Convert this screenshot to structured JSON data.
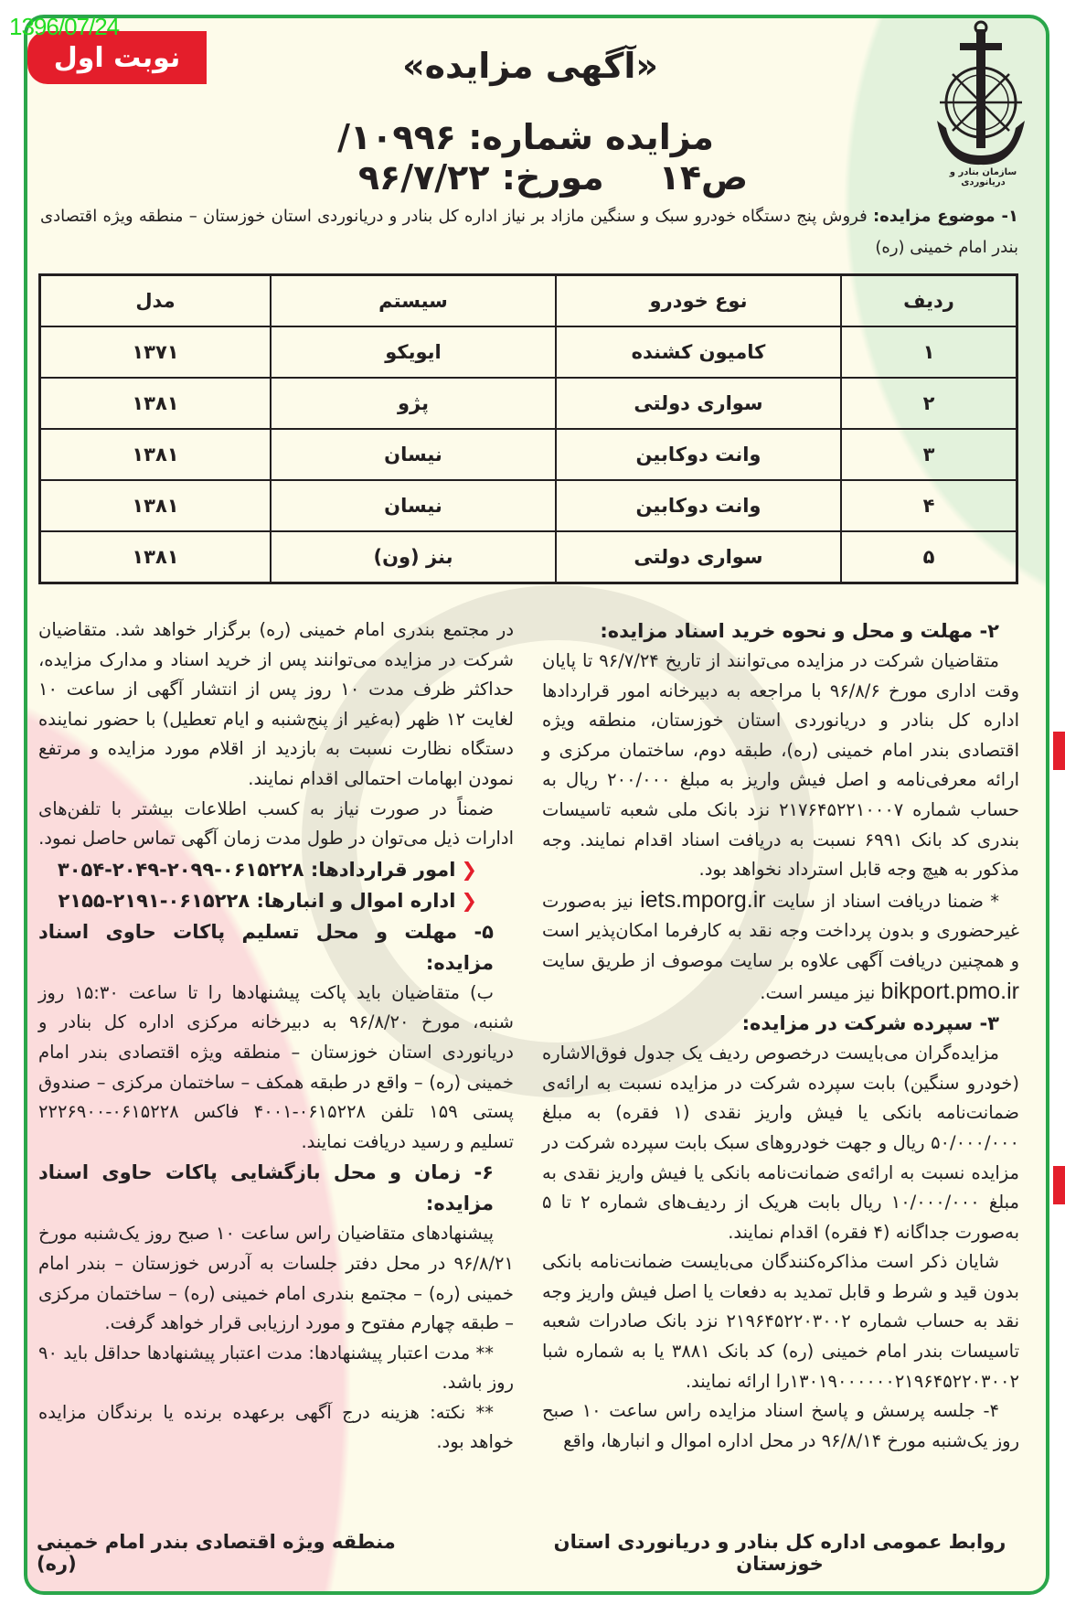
{
  "stamp_date": "1396/07/24",
  "badge": "نوبت اول",
  "logo_caption": "سازمان بنادر و دریانوردی",
  "title": "«آگهی مزایده»",
  "auction_number": "مزایده شماره: ۱۰۹۹۶/ص۱۴",
  "auction_date": "مورخ: ۹۶/۷/۲۲",
  "subject": {
    "label": "۱- موضوع مزایده:",
    "text": "فروش پنج دستگاه خودرو سبک و سنگین مازاد بر نیاز اداره کل بنادر و دریانوردی استان خوزستان – منطقه ویژه اقتصادی بندر امام خمینی (ره)"
  },
  "table": {
    "headers": [
      "ردیف",
      "نوع خودرو",
      "سیستم",
      "مدل"
    ],
    "rows": [
      [
        "۱",
        "کامیون کشنده",
        "ایویکو",
        "۱۳۷۱"
      ],
      [
        "۲",
        "سواری دولتی",
        "پژو",
        "۱۳۸۱"
      ],
      [
        "۳",
        "وانت دوکابین",
        "نیسان",
        "۱۳۸۱"
      ],
      [
        "۴",
        "وانت دوکابین",
        "نیسان",
        "۱۳۸۱"
      ],
      [
        "۵",
        "سواری دولتی",
        "بنز (ون)",
        "۱۳۸۱"
      ]
    ]
  },
  "right": {
    "s2_title": "۲- مهلت و محل و نحوه خرید اسناد مزایده:",
    "s2_p1": "متقاضیان شرکت در مزایده می‌توانند از تاریخ ۹۶/۷/۲۴ تا پایان وقت اداری مورخ ۹۶/۸/۶ با مراجعه به دبیرخانه امور قراردادها اداره کل بنادر و دریانوردی استان خوزستان، منطقه ویژه اقتصادی بندر امام خمینی (ره)، طبقه دوم، ساختمان مرکزی و ارائه معرفی‌نامه و اصل فیش واریز به مبلغ ۲۰۰/۰۰۰ ریال به حساب شماره ۲۱۷۶۴۵۲۲۱۰۰۰۷ نزد بانک ملی شعبه تاسیسات بندری کد بانک ۶۹۹۱ نسبت به دریافت اسناد اقدام نمایند. وجه مذکور به هیچ وجه قابل استرداد نخواهد بود.",
    "s2_p2a": "* ضمنا دریافت اسناد از سایت",
    "site1": "iets.mporg.ir",
    "s2_p2b": "نیز به‌صورت غیرحضوری و بدون پرداخت وجه نقد به کارفرما امکان‌پذیر است و همچنین دریافت آگهی علاوه بر سایت موصوف از طریق سایت",
    "site2": "bikport.pmo.ir",
    "s2_p2c": "نیز میسر است.",
    "s3_title": "۳- سپرده شرکت در مزایده:",
    "s3_p1": "مزایده‌گران می‌بایست درخصوص ردیف یک جدول فوق‌الاشاره (خودرو سنگین) بابت سپرده شرکت در مزایده نسبت به ارائه‌ی ضمانت‌نامه بانکی یا فیش واریز نقدی (۱ فقره) به مبلغ ۵۰/۰۰۰/۰۰۰ ریال و جهت خودروهای سبک بابت سپرده شرکت در مزایده نسبت به ارائه‌ی ضمانت‌نامه بانکی یا فیش واریز نقدی به مبلغ ۱۰/۰۰۰/۰۰۰ ریال بابت هریک از ردیف‌های شماره ۲ تا ۵ به‌صورت جداگانه (۴ فقره) اقدام نمایند.",
    "s3_p2": "شایان ذکر است مذاکره‌کنندگان می‌بایست ضمانت‌نامه بانکی بدون قید و شرط و قابل تمدید به دفعات یا اصل فیش واریز وجه نقد به حساب شماره ۲۱۹۶۴۵۲۲۰۳۰۰۲ نزد بانک صادرات شعبه تاسیسات بندر امام خمینی (ره) کد بانک ۳۸۸۱ یا به شماره شبا ۱۳۰۱۹۰۰۰۰۰۰۲۱۹۶۴۵۲۲۰۳۰۰۲را ارائه نمایند.",
    "s4_p": "۴- جلسه پرسش و پاسخ اسناد مزایده راس ساعت ۱۰ صبح روز یک‌شنبه مورخ ۹۶/۸/۱۴ در محل اداره اموال و انبارها، واقع"
  },
  "left": {
    "p1": "در مجتمع بندری امام خمینی (ره) برگزار خواهد شد. متقاضیان شرکت در مزایده می‌توانند پس از خرید اسناد و مدارک مزایده، حداکثر ظرف مدت ۱۰ روز پس از انتشار آگهی از ساعت ۱۰ لغایت ۱۲ ظهر (به‌غیر از پنج‌شنبه و ایام تعطیل) با حضور نماینده دستگاه نظارت نسبت به بازدید از اقلام مورد مزایده و مرتفع نمودن ابهامات احتمالی اقدام نمایند.",
    "p2": "ضمناً در صورت نیاز به کسب اطلاعات بیشتر با تلفن‌های ادارات ذیل می‌توان در طول مدت زمان آگهی تماس حاصل نمود.",
    "phones": [
      {
        "label": "امور قراردادها:",
        "number": "۰۶۱۵۲۲۸-۲۰۹۹-۲۰۴۹-۳۰۵۴"
      },
      {
        "label": "اداره اموال و انبارها:",
        "number": "۰۶۱۵۲۲۸-۲۱۹۱-۲۱۵۵"
      }
    ],
    "s5_title": "۵- مهلت و محل تسلیم پاکات حاوی اسناد مزایده:",
    "s5_p": "ب) متقاضیان باید پاکت پیشنهادها را تا ساعت ۱۵:۳۰ روز شنبه، مورخ ۹۶/۸/۲۰ به دبیرخانه مرکزی اداره کل بنادر و دریانوردی استان خوزستان – منطقه ویژه اقتصادی بندر امام خمینی (ره) – واقع در طبقه همکف – ساختمان مرکزی – صندوق پستی ۱۵۹ تلفن ۰۶۱۵۲۲۸-۴۰۰۱ فاکس ۰۶۱۵۲۲۸-۲۲۲۶۹۰۰ تسلیم و رسید دریافت نمایند.",
    "s6_title": "۶- زمان و محل بازگشایی پاکات حاوی اسناد مزایده:",
    "s6_p": "پیشنهادهای متقاضیان راس ساعت ۱۰ صبح روز یک‌شنبه مورخ ۹۶/۸/۲۱ در محل دفتر جلسات به آدرس خوزستان – بندر امام خمینی (ره) – مجتمع بندری امام خمینی (ره) – ساختمان مرکزی – طبقه چهارم مفتوح و مورد ارزیابی قرار خواهد گرفت.",
    "note1": "** مدت اعتبار پیشنهادها: مدت اعتبار پیشنهادها حداقل باید ۹۰ روز باشد.",
    "note2": "** نکته: هزینه درج آگهی برعهده برنده یا برندگان مزایده خواهد بود."
  },
  "footer": {
    "right": "روابط عمومی اداره کل بنادر و دریانوردی استان خوزستان",
    "left": "منطقه ویژه اقتصادی بندر امام خمینی (ره)"
  },
  "colors": {
    "frame": "#2aa64a",
    "badge": "#e41e2b",
    "paper": "#fdfbea",
    "stamp": "#22dd22"
  }
}
